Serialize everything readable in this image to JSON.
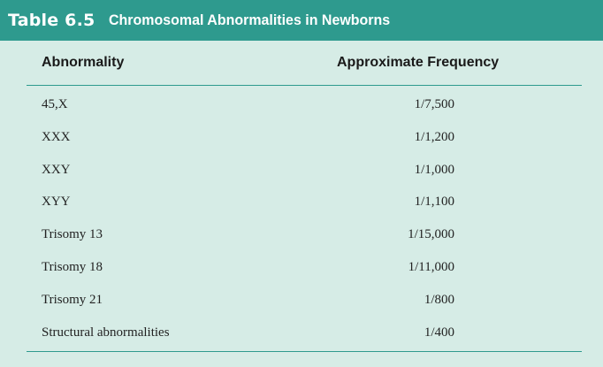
{
  "table": {
    "number": "Table 6.5",
    "title": "Chromosomal Abnormalities in Newborns",
    "columns": [
      "Abnormality",
      "Approximate Frequency"
    ],
    "rows": [
      {
        "abnormality": "45,X",
        "frequency": "1/7,500"
      },
      {
        "abnormality": "XXX",
        "frequency": "1/1,200"
      },
      {
        "abnormality": "XXY",
        "frequency": "1/1,000"
      },
      {
        "abnormality": "XYY",
        "frequency": "1/1,100"
      },
      {
        "abnormality": "Trisomy 13",
        "frequency": "1/15,000"
      },
      {
        "abnormality": "Trisomy 18",
        "frequency": "1/11,000"
      },
      {
        "abnormality": "Trisomy 21",
        "frequency": "1/800"
      },
      {
        "abnormality": "Structural abnormalities",
        "frequency": "1/400"
      }
    ]
  },
  "colors": {
    "title_bar": "#2e9a8e",
    "background": "#d6ece6",
    "rule": "#2e9a8e"
  }
}
